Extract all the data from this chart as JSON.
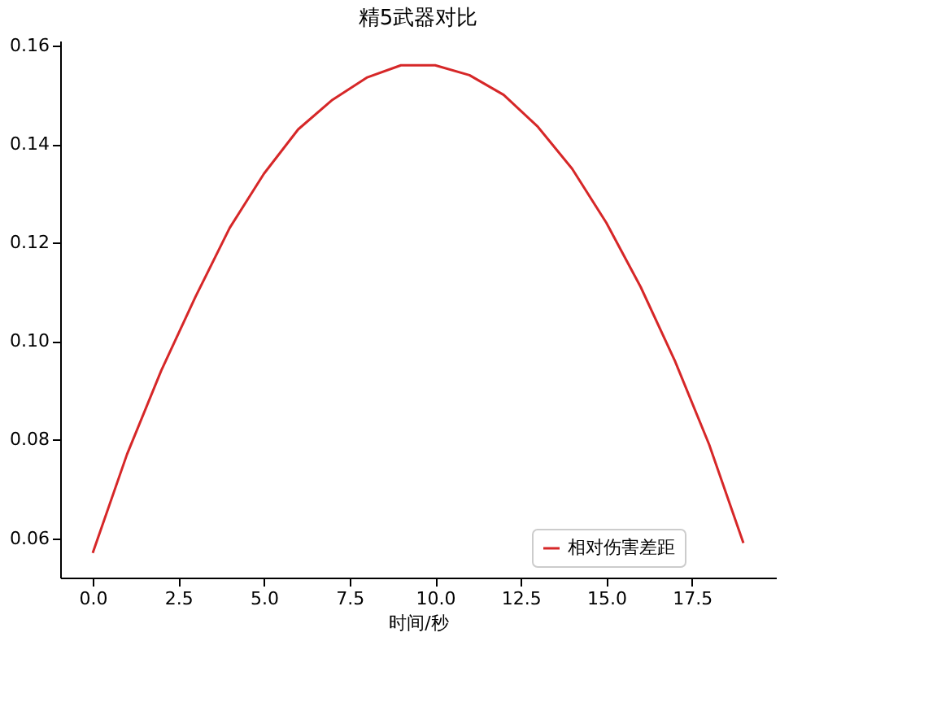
{
  "chart_data": {
    "type": "line",
    "title": "精5武器对比",
    "xlabel": "时间/秒",
    "x": [
      0,
      1,
      2,
      3,
      4,
      5,
      6,
      7,
      8,
      9,
      10,
      11,
      12,
      13,
      14,
      15,
      16,
      17,
      18,
      19
    ],
    "series": [
      {
        "name": "相对伤害差距",
        "color": "#d62728",
        "values": [
          0.057,
          0.077,
          0.094,
          0.109,
          0.123,
          0.134,
          0.143,
          0.149,
          0.1535,
          0.156,
          0.156,
          0.154,
          0.15,
          0.1435,
          0.135,
          0.124,
          0.111,
          0.096,
          0.079,
          0.059
        ]
      }
    ],
    "xlim": [
      -0.95,
      19.95
    ],
    "xticks": [
      {
        "value": 0,
        "label": "0.0"
      },
      {
        "value": 2.5,
        "label": "2.5"
      },
      {
        "value": 5,
        "label": "5.0"
      },
      {
        "value": 7.5,
        "label": "7.5"
      },
      {
        "value": 10,
        "label": "10.0"
      },
      {
        "value": 12.5,
        "label": "12.5"
      },
      {
        "value": 15,
        "label": "15.0"
      },
      {
        "value": 17.5,
        "label": "17.5"
      }
    ],
    "ylim": [
      0.052,
      0.161
    ],
    "yticks": [
      {
        "value": 0.06,
        "label": "0.06"
      },
      {
        "value": 0.08,
        "label": "0.08"
      },
      {
        "value": 0.1,
        "label": "0.10"
      },
      {
        "value": 0.12,
        "label": "0.12"
      },
      {
        "value": 0.14,
        "label": "0.14"
      },
      {
        "value": 0.16,
        "label": "0.16"
      }
    ],
    "grid": false,
    "legend": "bottom right",
    "marker": "none",
    "line_style": "solid"
  }
}
